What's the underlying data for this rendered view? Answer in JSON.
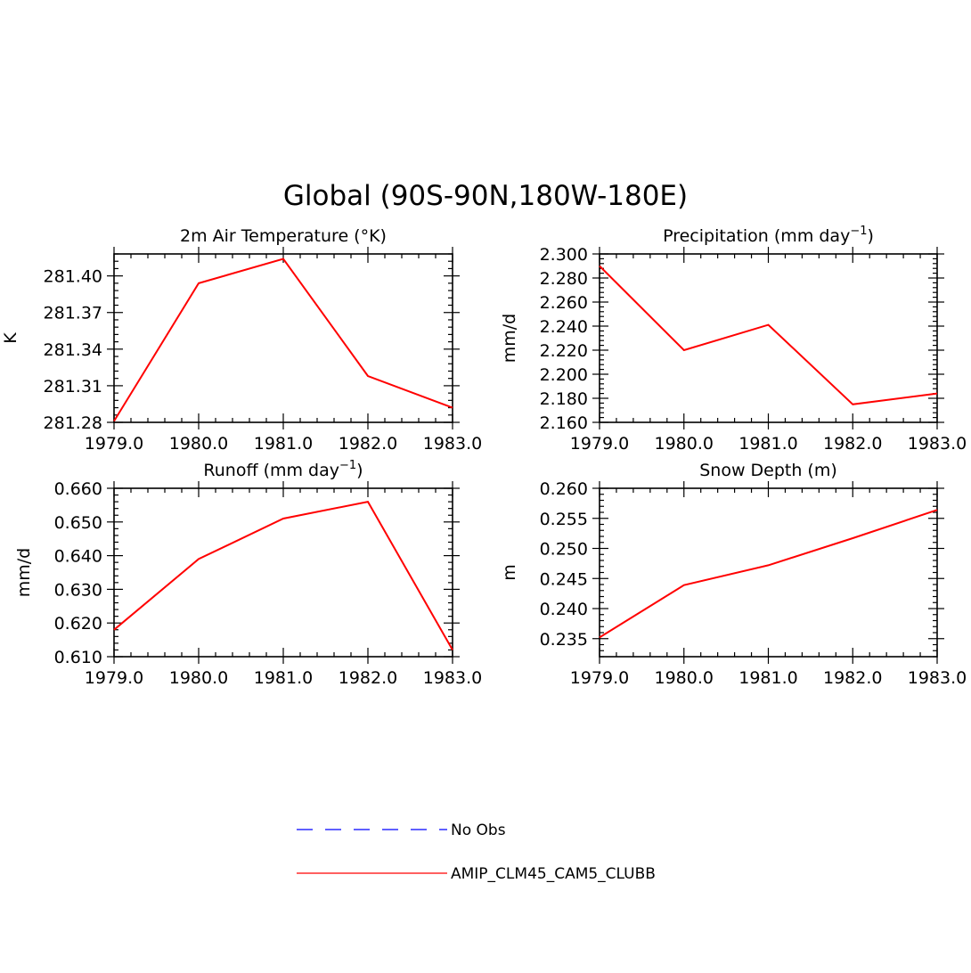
{
  "figure": {
    "title": "Global (90S-90N,180W-180E)"
  },
  "legend": {
    "items": [
      {
        "label": "No Obs",
        "color": "#0000ff",
        "style": "dashed"
      },
      {
        "label": "AMIP_CLM45_CAM5_CLUBB",
        "color": "#ff0000",
        "style": "solid"
      }
    ]
  },
  "chart_data": [
    {
      "type": "line",
      "title": "2m Air Temperature (°K)",
      "ylabel": "K",
      "x": [
        1979,
        1980,
        1981,
        1982,
        1983
      ],
      "xlim": [
        1979,
        1983
      ],
      "ylim": [
        281.28,
        281.418
      ],
      "xticks": [
        "1979.0",
        "1980.0",
        "1981.0",
        "1982.0",
        "1983.0"
      ],
      "yticks": [
        281.28,
        281.31,
        281.34,
        281.37,
        281.4
      ],
      "yticklabels": [
        "281.28",
        "281.31",
        "281.34",
        "281.37",
        "281.40"
      ],
      "series": [
        {
          "name": "AMIP_CLM45_CAM5_CLUBB",
          "color": "#ff0000",
          "values": [
            281.281,
            281.394,
            281.414,
            281.318,
            281.292
          ]
        }
      ]
    },
    {
      "type": "line",
      "title": "Precipitation (mm day",
      "title_sup": "−1",
      "title_end": ")",
      "ylabel": "mm/d",
      "x": [
        1979,
        1980,
        1981,
        1982,
        1983
      ],
      "xlim": [
        1979,
        1983
      ],
      "ylim": [
        2.16,
        2.3
      ],
      "xticks": [
        "1979.0",
        "1980.0",
        "1981.0",
        "1982.0",
        "1983.0"
      ],
      "yticks": [
        2.16,
        2.18,
        2.2,
        2.22,
        2.24,
        2.26,
        2.28,
        2.3
      ],
      "yticklabels": [
        "2.160",
        "2.180",
        "2.200",
        "2.220",
        "2.240",
        "2.260",
        "2.280",
        "2.300"
      ],
      "series": [
        {
          "name": "AMIP_CLM45_CAM5_CLUBB",
          "color": "#ff0000",
          "values": [
            2.29,
            2.22,
            2.241,
            2.175,
            2.184
          ]
        }
      ]
    },
    {
      "type": "line",
      "title": "Runoff (mm day",
      "title_sup": "−1",
      "title_end": ")",
      "ylabel": "mm/d",
      "x": [
        1979,
        1980,
        1981,
        1982,
        1983
      ],
      "xlim": [
        1979,
        1983
      ],
      "ylim": [
        0.61,
        0.66
      ],
      "xticks": [
        "1979.0",
        "1980.0",
        "1981.0",
        "1982.0",
        "1983.0"
      ],
      "yticks": [
        0.61,
        0.62,
        0.63,
        0.64,
        0.65,
        0.66
      ],
      "yticklabels": [
        "0.610",
        "0.620",
        "0.630",
        "0.640",
        "0.650",
        "0.660"
      ],
      "series": [
        {
          "name": "AMIP_CLM45_CAM5_CLUBB",
          "color": "#ff0000",
          "values": [
            0.618,
            0.639,
            0.651,
            0.656,
            0.612
          ]
        }
      ]
    },
    {
      "type": "line",
      "title": "Snow Depth (m)",
      "ylabel": "m",
      "x": [
        1979,
        1980,
        1981,
        1982,
        1983
      ],
      "xlim": [
        1979,
        1983
      ],
      "ylim": [
        0.232,
        0.26
      ],
      "xticks": [
        "1979.0",
        "1980.0",
        "1981.0",
        "1982.0",
        "1983.0"
      ],
      "yticks": [
        0.235,
        0.24,
        0.245,
        0.25,
        0.255,
        0.26
      ],
      "yticklabels": [
        "0.235",
        "0.240",
        "0.245",
        "0.250",
        "0.255",
        "0.260"
      ],
      "series": [
        {
          "name": "AMIP_CLM45_CAM5_CLUBB",
          "color": "#ff0000",
          "values": [
            0.2352,
            0.2439,
            0.2472,
            0.2517,
            0.2564
          ]
        }
      ]
    }
  ]
}
